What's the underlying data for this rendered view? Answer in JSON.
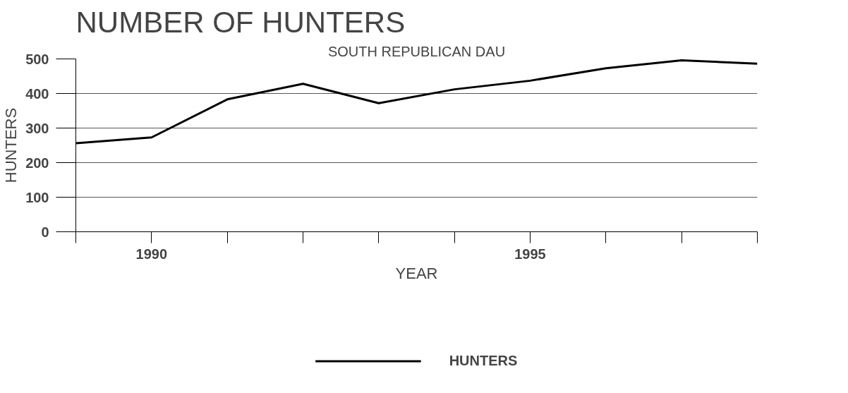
{
  "chart_data": {
    "type": "line",
    "title": "NUMBER OF HUNTERS",
    "subtitle": "SOUTH REPUBLICAN DAU",
    "xlabel": "YEAR",
    "ylabel": "HUNTERS",
    "x": [
      1989,
      1990,
      1991,
      1992,
      1993,
      1994,
      1995,
      1996,
      1997,
      1998
    ],
    "series": [
      {
        "name": "HUNTERS",
        "color": "#000000",
        "values": [
          256,
          273,
          383,
          428,
          372,
          412,
          437,
          473,
          496,
          486
        ]
      }
    ],
    "xlim": [
      1989,
      1998
    ],
    "xticks": [
      {
        "value": 1989,
        "label": null
      },
      1990,
      {
        "value": 1991,
        "label": null
      },
      {
        "value": 1992,
        "label": null
      },
      {
        "value": 1993,
        "label": null
      },
      {
        "value": 1994,
        "label": null
      },
      1995,
      {
        "value": 1996,
        "label": null
      },
      {
        "value": 1997,
        "label": null
      },
      {
        "value": 1998,
        "label": null
      }
    ],
    "ylim": [
      0,
      500
    ],
    "yticks": [
      0,
      100,
      200,
      300,
      400,
      500
    ],
    "grid": "y",
    "legend": "bottom",
    "marker": "none",
    "line_style": "solid"
  }
}
